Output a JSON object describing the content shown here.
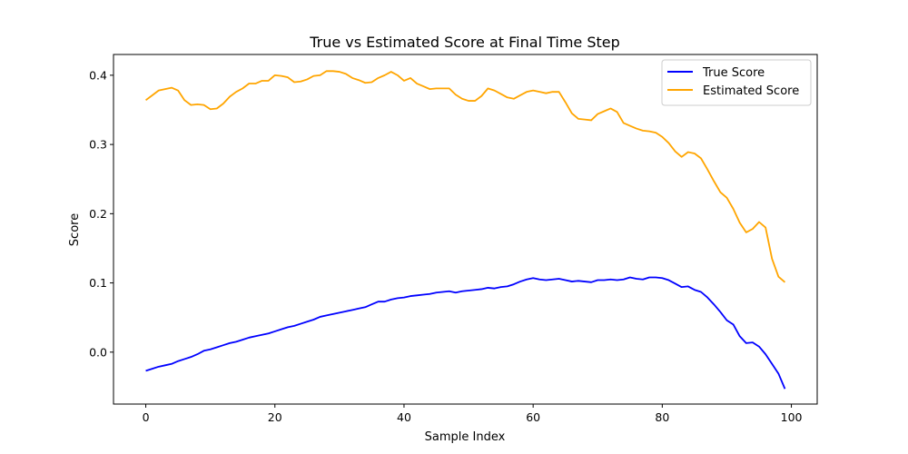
{
  "chart_data": {
    "type": "line",
    "title": "True vs Estimated Score at Final Time Step",
    "xlabel": "Sample Index",
    "ylabel": "Score",
    "xlim": [
      -5,
      104
    ],
    "ylim": [
      -0.075,
      0.43
    ],
    "xticks": [
      0,
      20,
      40,
      60,
      80,
      100
    ],
    "xtick_labels": [
      "0",
      "20",
      "40",
      "60",
      "80",
      "100"
    ],
    "yticks": [
      0.0,
      0.1,
      0.2,
      0.3,
      0.4
    ],
    "ytick_labels": [
      "0.0",
      "0.1",
      "0.2",
      "0.3",
      "0.4"
    ],
    "grid": false,
    "legend_position": "top-right",
    "x": [
      0,
      1,
      2,
      3,
      4,
      5,
      6,
      7,
      8,
      9,
      10,
      11,
      12,
      13,
      14,
      15,
      16,
      17,
      18,
      19,
      20,
      21,
      22,
      23,
      24,
      25,
      26,
      27,
      28,
      29,
      30,
      31,
      32,
      33,
      34,
      35,
      36,
      37,
      38,
      39,
      40,
      41,
      42,
      43,
      44,
      45,
      46,
      47,
      48,
      49,
      50,
      51,
      52,
      53,
      54,
      55,
      56,
      57,
      58,
      59,
      60,
      61,
      62,
      63,
      64,
      65,
      66,
      67,
      68,
      69,
      70,
      71,
      72,
      73,
      74,
      75,
      76,
      77,
      78,
      79,
      80,
      81,
      82,
      83,
      84,
      85,
      86,
      87,
      88,
      89,
      90,
      91,
      92,
      93,
      94,
      95,
      96,
      97,
      98,
      99
    ],
    "series": [
      {
        "name": "True Score",
        "color": "#0000ff",
        "values": [
          -0.027,
          -0.024,
          -0.021,
          -0.019,
          -0.017,
          -0.013,
          -0.01,
          -0.007,
          -0.003,
          0.002,
          0.004,
          0.007,
          0.01,
          0.013,
          0.015,
          0.018,
          0.021,
          0.023,
          0.025,
          0.027,
          0.03,
          0.033,
          0.036,
          0.038,
          0.041,
          0.044,
          0.047,
          0.051,
          0.053,
          0.055,
          0.057,
          0.059,
          0.061,
          0.063,
          0.065,
          0.069,
          0.073,
          0.073,
          0.076,
          0.078,
          0.079,
          0.081,
          0.082,
          0.083,
          0.084,
          0.086,
          0.087,
          0.088,
          0.086,
          0.088,
          0.089,
          0.09,
          0.091,
          0.093,
          0.092,
          0.094,
          0.095,
          0.098,
          0.102,
          0.105,
          0.107,
          0.105,
          0.104,
          0.105,
          0.106,
          0.104,
          0.102,
          0.103,
          0.102,
          0.101,
          0.104,
          0.104,
          0.105,
          0.104,
          0.105,
          0.108,
          0.106,
          0.105,
          0.108,
          0.108,
          0.107,
          0.104,
          0.099,
          0.094,
          0.095,
          0.09,
          0.087,
          0.079,
          0.069,
          0.058,
          0.046,
          0.04,
          0.023,
          0.013,
          0.014,
          0.008,
          -0.003,
          -0.017,
          -0.031,
          -0.053
        ]
      },
      {
        "name": "Estimated Score",
        "color": "#ffa500",
        "values": [
          0.364,
          0.371,
          0.378,
          0.38,
          0.382,
          0.378,
          0.364,
          0.357,
          0.358,
          0.357,
          0.351,
          0.352,
          0.359,
          0.369,
          0.376,
          0.381,
          0.388,
          0.388,
          0.392,
          0.392,
          0.4,
          0.399,
          0.397,
          0.39,
          0.391,
          0.394,
          0.399,
          0.4,
          0.406,
          0.406,
          0.405,
          0.402,
          0.396,
          0.393,
          0.389,
          0.39,
          0.396,
          0.4,
          0.405,
          0.4,
          0.392,
          0.396,
          0.388,
          0.384,
          0.38,
          0.381,
          0.381,
          0.381,
          0.372,
          0.366,
          0.363,
          0.363,
          0.37,
          0.381,
          0.378,
          0.373,
          0.368,
          0.366,
          0.371,
          0.376,
          0.378,
          0.376,
          0.374,
          0.376,
          0.376,
          0.361,
          0.345,
          0.337,
          0.336,
          0.335,
          0.344,
          0.348,
          0.352,
          0.347,
          0.331,
          0.327,
          0.323,
          0.32,
          0.319,
          0.317,
          0.311,
          0.302,
          0.29,
          0.282,
          0.289,
          0.287,
          0.28,
          0.264,
          0.247,
          0.231,
          0.223,
          0.207,
          0.187,
          0.173,
          0.178,
          0.188,
          0.18,
          0.135,
          0.109,
          0.101
        ]
      }
    ]
  }
}
